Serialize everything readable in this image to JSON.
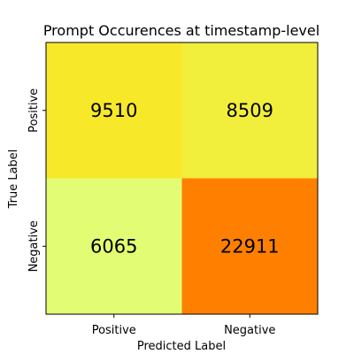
{
  "chart_data": {
    "type": "heatmap",
    "title": "Prompt Occurences at timestamp-level",
    "xlabel": "Predicted Label",
    "ylabel": "True Label",
    "x_categories": [
      "Positive",
      "Negative"
    ],
    "y_categories": [
      "Positive",
      "Negative"
    ],
    "values": [
      [
        9510,
        8509
      ],
      [
        6065,
        22911
      ]
    ],
    "cell_colors": [
      [
        "#f8e82a",
        "#f2ee3c"
      ],
      [
        "#e2fd74",
        "#ff8000"
      ]
    ],
    "colormap": "Wistia",
    "grid": false,
    "legend": "none"
  }
}
